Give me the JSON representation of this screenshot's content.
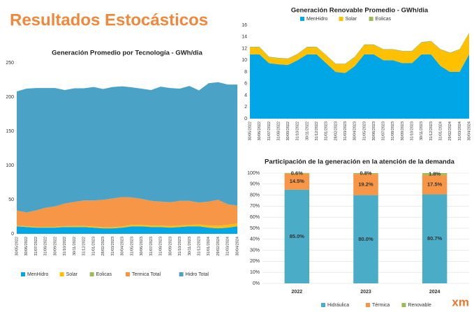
{
  "header": {
    "title": "Resultados Estocásticos"
  },
  "logo": "xm",
  "chart_data": [
    {
      "type": "area",
      "title": "Generación Promedio por Tecnología - GWh/dia",
      "legend": "bottom",
      "grid": false,
      "categories": [
        "30/05/2022",
        "30/06/2022",
        "31/07/2022",
        "31/08/2022",
        "30/09/2022",
        "31/10/2022",
        "30/11/2022",
        "31/12/2022",
        "31/01/2023",
        "28/02/2023",
        "31/03/2023",
        "30/04/2023",
        "31/05/2023",
        "30/06/2023",
        "31/07/2023",
        "31/08/2023",
        "30/09/2023",
        "31/10/2023",
        "30/11/2023",
        "31/12/2023",
        "31/01/2024",
        "29/02/2024",
        "31/03/2024",
        "30/04/2024"
      ],
      "ylim": [
        0,
        250
      ],
      "yticks": [
        0,
        50,
        100,
        150,
        200,
        250
      ],
      "series": [
        {
          "name": "MenHidro",
          "color": "#00a6e6",
          "values": [
            11,
            10,
            9,
            9,
            9,
            10,
            10,
            10,
            9,
            8,
            8,
            9,
            11,
            11,
            10,
            10,
            9,
            10,
            11,
            11,
            9,
            8,
            9,
            11
          ]
        },
        {
          "name": "Solar",
          "color": "#ffc000",
          "values": [
            1,
            1,
            1,
            1,
            1,
            1,
            1.5,
            1.5,
            1.5,
            1.5,
            1.5,
            1.5,
            2,
            2,
            2,
            2,
            2,
            2,
            2,
            2.5,
            3,
            3.5,
            4,
            4
          ]
        },
        {
          "name": "Eolicas",
          "color": "#9bbb59",
          "values": [
            0.2,
            0.2,
            0.2,
            0.2,
            0.2,
            0.2,
            0.2,
            0.2,
            0.2,
            0.2,
            0.2,
            0.2,
            0.2,
            0.2,
            0.2,
            0.2,
            0.2,
            0.2,
            0.2,
            0.2,
            0.2,
            0.2,
            0.2,
            0.2
          ]
        },
        {
          "name": "Termica Total",
          "color": "#f79646",
          "values": [
            22,
            20,
            24,
            28,
            30,
            33,
            35,
            37,
            38,
            40,
            42,
            43,
            40,
            38,
            36,
            35,
            35,
            36,
            35,
            32,
            35,
            38,
            30,
            26
          ]
        },
        {
          "name": "Hidro Total",
          "color": "#4aa3c6",
          "values": [
            174,
            181,
            179,
            175,
            173,
            166,
            166,
            164,
            166,
            162,
            163,
            162,
            161,
            161,
            162,
            168,
            167,
            164,
            168,
            164,
            173,
            172,
            175,
            177
          ]
        }
      ]
    },
    {
      "type": "area",
      "title": "Generación Renovable Promedio - GWh/dia",
      "legend": "top",
      "grid": false,
      "categories": [
        "30/05/2022",
        "30/06/2022",
        "31/07/2022",
        "31/08/2022",
        "30/09/2022",
        "31/10/2022",
        "30/11/2022",
        "31/12/2022",
        "31/01/2023",
        "28/02/2023",
        "31/03/2023",
        "30/04/2023",
        "31/05/2023",
        "30/06/2023",
        "31/07/2023",
        "31/08/2023",
        "30/09/2023",
        "31/10/2023",
        "30/11/2023",
        "31/12/2023",
        "31/01/2024",
        "29/02/2024",
        "31/03/2024",
        "30/04/2024"
      ],
      "ylim": [
        0,
        16
      ],
      "yticks": [
        0,
        2,
        4,
        6,
        8,
        10,
        12,
        14,
        16
      ],
      "series": [
        {
          "name": "MenHidro",
          "color": "#00a6e6",
          "values": [
            11,
            11,
            9.5,
            9.3,
            9.2,
            10,
            11,
            11,
            9.5,
            8,
            7.8,
            9,
            11,
            11,
            10,
            10,
            9.5,
            9.5,
            11,
            11,
            9,
            8,
            8,
            11
          ]
        },
        {
          "name": "Solar",
          "color": "#ffc000",
          "values": [
            1.2,
            1.2,
            1,
            1,
            1,
            1,
            1.2,
            1.2,
            1.3,
            1.3,
            1.5,
            1.5,
            1.6,
            1.6,
            1.8,
            1.8,
            2,
            2,
            2,
            2.2,
            2.8,
            3.2,
            3.8,
            3.6
          ]
        },
        {
          "name": "Eolicas",
          "color": "#9bbb59",
          "values": [
            0.1,
            0.1,
            0.1,
            0.1,
            0.1,
            0.1,
            0.1,
            0.1,
            0.1,
            0.1,
            0.1,
            0.1,
            0.1,
            0.1,
            0.1,
            0.1,
            0.1,
            0.1,
            0.1,
            0.1,
            0.1,
            0.1,
            0.1,
            0.1
          ]
        }
      ]
    },
    {
      "type": "bar",
      "title": "Participación de la generación en la atención de la demanda",
      "legend": "bottom",
      "grid": true,
      "categories": [
        "2022",
        "2023",
        "2024"
      ],
      "ylim": [
        0,
        100
      ],
      "yticks": [
        {
          "value": 0,
          "label": "0%"
        },
        {
          "value": 10,
          "label": "10%"
        },
        {
          "value": 20,
          "label": "20%"
        },
        {
          "value": 30,
          "label": "30%"
        },
        {
          "value": 40,
          "label": "40%"
        },
        {
          "value": 50,
          "label": "50%"
        },
        {
          "value": 60,
          "label": "60%"
        },
        {
          "value": 70,
          "label": "70%"
        },
        {
          "value": 80,
          "label": "80%"
        },
        {
          "value": 90,
          "label": "90%"
        },
        {
          "value": 100,
          "label": "100%"
        }
      ],
      "series": [
        {
          "name": "Hidráulica",
          "color": "#4aacc6",
          "values": [
            85.0,
            80.0,
            80.7
          ],
          "value_labels": [
            "85.0%",
            "80.0%",
            "80.7%"
          ]
        },
        {
          "name": "Térmica",
          "color": "#f79646",
          "values": [
            14.5,
            19.2,
            17.5
          ],
          "value_labels": [
            "14.5%",
            "19.2%",
            "17.5%"
          ]
        },
        {
          "name": "Renovable",
          "color": "#9bbb59",
          "values": [
            0.6,
            0.8,
            1.8
          ],
          "value_labels": [
            "0.6%",
            "0.8%",
            "1.8%"
          ]
        }
      ]
    }
  ]
}
